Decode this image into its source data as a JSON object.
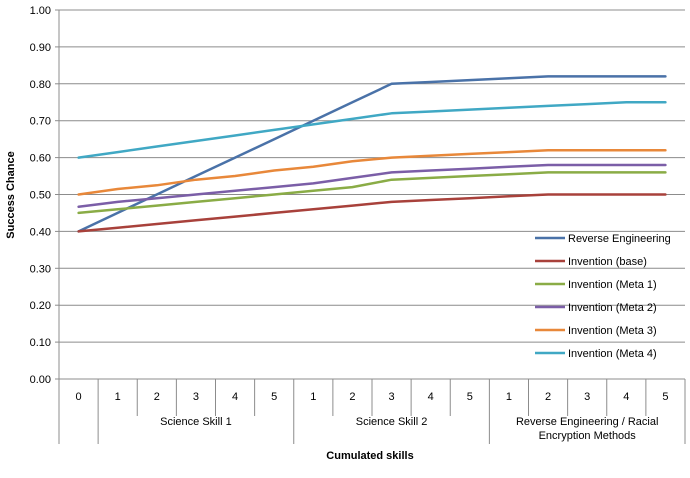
{
  "chart_data": {
    "type": "line",
    "title": "",
    "xlabel": "Cumulated skills",
    "ylabel": "Success Chance",
    "ylim": [
      0,
      1.0
    ],
    "y_ticks": [
      "0.00",
      "0.10",
      "0.20",
      "0.30",
      "0.40",
      "0.50",
      "0.60",
      "0.70",
      "0.80",
      "0.90",
      "1.00"
    ],
    "grid": "horizontal",
    "legend_position": "bottom-right",
    "categories": [
      "0",
      "1",
      "2",
      "3",
      "4",
      "5",
      "1",
      "2",
      "3",
      "4",
      "5",
      "1",
      "2",
      "3",
      "4",
      "5"
    ],
    "groups": [
      {
        "label_lines": [
          "Science Skill 1"
        ],
        "from": 1,
        "to": 5
      },
      {
        "label_lines": [
          "Science Skill 2"
        ],
        "from": 6,
        "to": 10
      },
      {
        "label_lines": [
          "Reverse Engineering / Racial",
          "Encryption Methods"
        ],
        "from": 11,
        "to": 15
      }
    ],
    "series": [
      {
        "name": "Reverse Engineering",
        "color": "#4a72a8",
        "values": [
          0.4,
          0.45,
          0.5,
          0.55,
          0.6,
          0.65,
          0.7,
          0.75,
          0.8,
          0.805,
          0.81,
          0.815,
          0.82,
          0.82,
          0.82,
          0.82
        ]
      },
      {
        "name": "Invention (base)",
        "color": "#a8413b",
        "values": [
          0.4,
          0.41,
          0.42,
          0.43,
          0.44,
          0.45,
          0.46,
          0.47,
          0.48,
          0.485,
          0.49,
          0.495,
          0.5,
          0.5,
          0.5,
          0.5
        ]
      },
      {
        "name": "Invention (Meta 1)",
        "color": "#8aac46",
        "values": [
          0.45,
          0.46,
          0.47,
          0.48,
          0.49,
          0.5,
          0.51,
          0.52,
          0.54,
          0.545,
          0.55,
          0.555,
          0.56,
          0.56,
          0.56,
          0.56
        ]
      },
      {
        "name": "Invention (Meta 2)",
        "color": "#7b5ea7",
        "values": [
          0.467,
          0.48,
          0.49,
          0.5,
          0.51,
          0.52,
          0.53,
          0.545,
          0.56,
          0.565,
          0.57,
          0.575,
          0.58,
          0.58,
          0.58,
          0.58
        ]
      },
      {
        "name": "Invention (Meta 3)",
        "color": "#e8883a",
        "values": [
          0.5,
          0.515,
          0.525,
          0.54,
          0.55,
          0.565,
          0.575,
          0.59,
          0.6,
          0.605,
          0.61,
          0.615,
          0.62,
          0.62,
          0.62,
          0.62
        ]
      },
      {
        "name": "Invention (Meta 4)",
        "color": "#40a8c4",
        "values": [
          0.6,
          0.615,
          0.63,
          0.645,
          0.66,
          0.675,
          0.69,
          0.705,
          0.72,
          0.725,
          0.73,
          0.735,
          0.74,
          0.745,
          0.75,
          0.75
        ]
      }
    ]
  }
}
